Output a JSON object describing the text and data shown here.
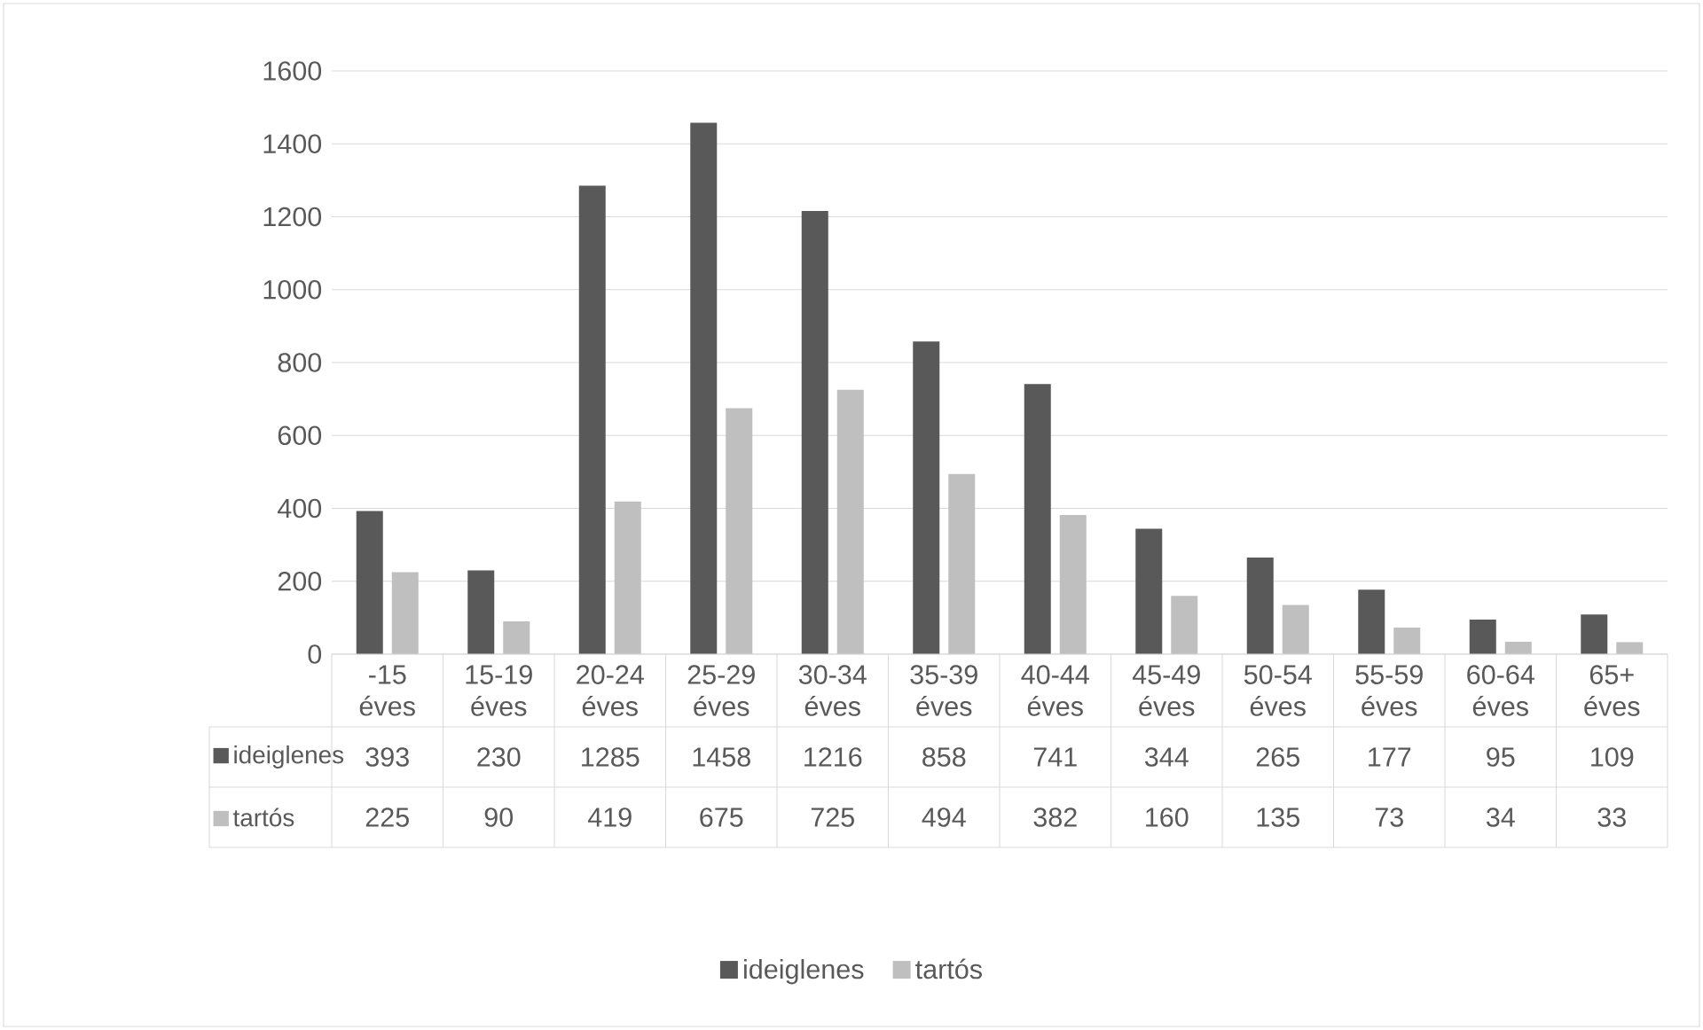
{
  "chart_data": {
    "type": "bar",
    "categories": [
      "-15 éves",
      "15-19 éves",
      "20-24 éves",
      "25-29 éves",
      "30-34 éves",
      "35-39 éves",
      "40-44 éves",
      "45-49 éves",
      "50-54 éves",
      "55-59 éves",
      "60-64 éves",
      "65+ éves"
    ],
    "series": [
      {
        "name": "ideiglenes",
        "color": "#595959",
        "values": [
          393,
          230,
          1285,
          1458,
          1216,
          858,
          741,
          344,
          265,
          177,
          95,
          109
        ]
      },
      {
        "name": "tartós",
        "color": "#bfbfbf",
        "values": [
          225,
          90,
          419,
          675,
          725,
          494,
          382,
          160,
          135,
          73,
          34,
          33
        ]
      }
    ],
    "ylim": [
      0,
      1600
    ],
    "yticks": [
      0,
      200,
      400,
      600,
      800,
      1000,
      1200,
      1400,
      1600
    ],
    "grid": "y",
    "legend": "bottom",
    "data_labels": true
  }
}
